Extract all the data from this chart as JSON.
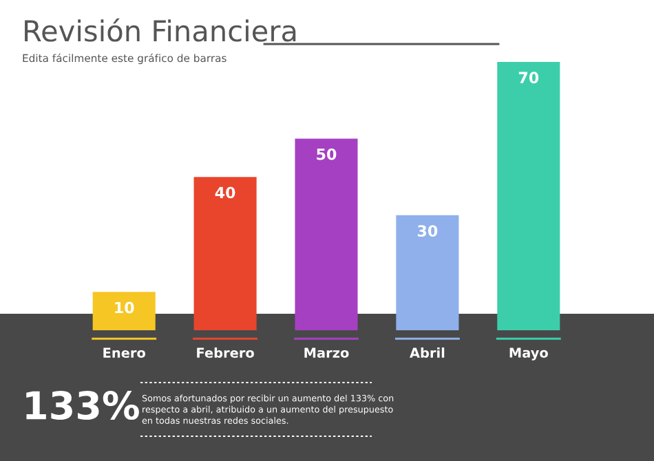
{
  "chart_data": {
    "type": "bar",
    "title": "Revisión Financiera",
    "subtitle": "Edita fácilmente este gráfico de barras",
    "categories": [
      "Enero",
      "Febrero",
      "Marzo",
      "Abril",
      "Mayo"
    ],
    "values": [
      10,
      40,
      50,
      30,
      70
    ],
    "colors": [
      "#f6c624",
      "#e9442c",
      "#a640c2",
      "#8fb0ea",
      "#3cceaa"
    ],
    "data_labels": true,
    "annotations": [
      "133%",
      "Somos afortunados por recibir un aumento del 133% con\nrespecto a abril, atribuido a un aumento del presupuesto\nen todas nuestras redes sociales."
    ]
  }
}
